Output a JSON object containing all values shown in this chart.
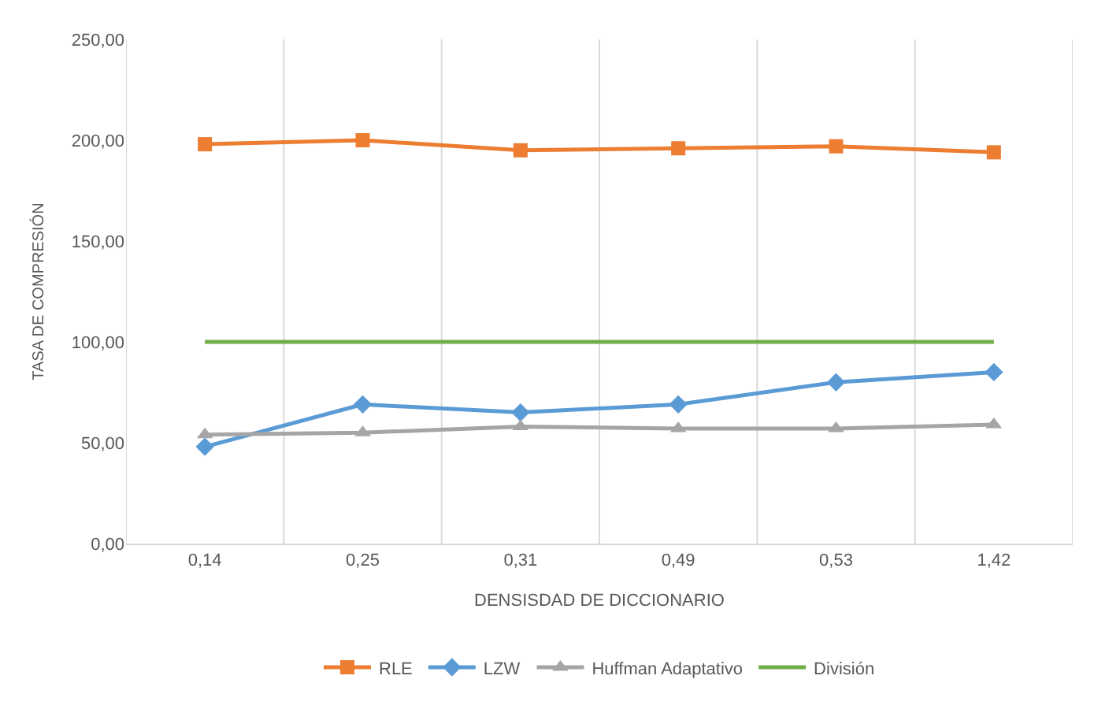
{
  "chart_data": {
    "type": "line",
    "xlabel": "DENSISDAD DE DICCIONARIO",
    "ylabel": "TASA DE COMPRESIÓN",
    "categories": [
      "0,14",
      "0,25",
      "0,31",
      "0,49",
      "0,53",
      "1,42"
    ],
    "series": [
      {
        "name": "RLE",
        "color": "#ed7d31",
        "marker": "square",
        "values": [
          198,
          200,
          195,
          196,
          197,
          194
        ]
      },
      {
        "name": "LZW",
        "color": "#5b9bd5",
        "marker": "diamond",
        "values": [
          48,
          69,
          65,
          69,
          80,
          85
        ]
      },
      {
        "name": "Huffman Adaptativo",
        "color": "#a5a5a5",
        "marker": "triangle",
        "values": [
          54,
          55,
          58,
          57,
          57,
          59
        ]
      },
      {
        "name": "División",
        "color": "#70ad47",
        "marker": "none",
        "values": [
          100,
          100,
          100,
          100,
          100,
          100
        ]
      }
    ],
    "ylim": [
      0,
      250
    ],
    "yticks": [
      {
        "value": 0,
        "label": "0,00"
      },
      {
        "value": 50,
        "label": "50,00"
      },
      {
        "value": 100,
        "label": "100,00"
      },
      {
        "value": 150,
        "label": "150,00"
      },
      {
        "value": 200,
        "label": "200,00"
      },
      {
        "value": 250,
        "label": "250,00"
      }
    ],
    "grid": "x",
    "legend": "bottom"
  }
}
